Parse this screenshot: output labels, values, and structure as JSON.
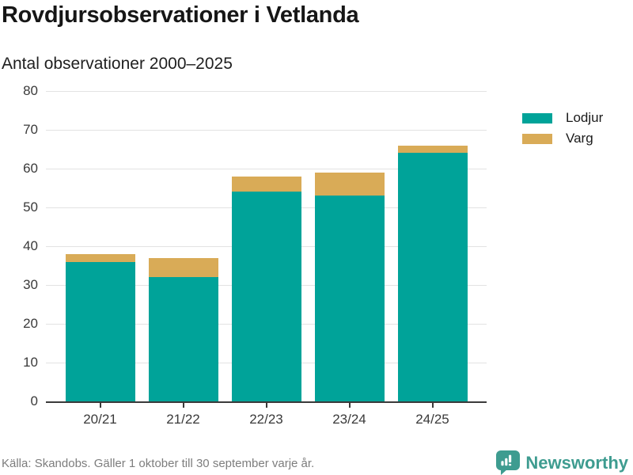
{
  "header": {
    "title": "Rovdjursobservationer i Vetlanda",
    "subtitle": "Antal observationer 2000–2025"
  },
  "chart_data": {
    "type": "bar",
    "stacked": true,
    "title": "Rovdjursobservationer i Vetlanda",
    "subtitle": "Antal observationer 2000–2025",
    "categories": [
      "20/21",
      "21/22",
      "22/23",
      "23/24",
      "24/25"
    ],
    "series": [
      {
        "name": "Lodjur",
        "color": "#00a399",
        "values": [
          36,
          32,
          54,
          53,
          64
        ]
      },
      {
        "name": "Varg",
        "color": "#d9ab57",
        "values": [
          2,
          5,
          4,
          6,
          2
        ]
      }
    ],
    "stack_totals": [
      38,
      37,
      58,
      59,
      66
    ],
    "xlabel": "",
    "ylabel": "Antal observationer",
    "ylim": [
      0,
      80
    ],
    "ytick_step": 10,
    "grid": true,
    "gridline_color": "#e3e3e3",
    "axis_color": "#3a3a3a",
    "legend_position": "right"
  },
  "footer": {
    "source": "Källa: Skandobs. Gäller 1 oktober till 30 september varje år.",
    "brand": "Newsworthy",
    "brand_color": "#3e9c90"
  }
}
